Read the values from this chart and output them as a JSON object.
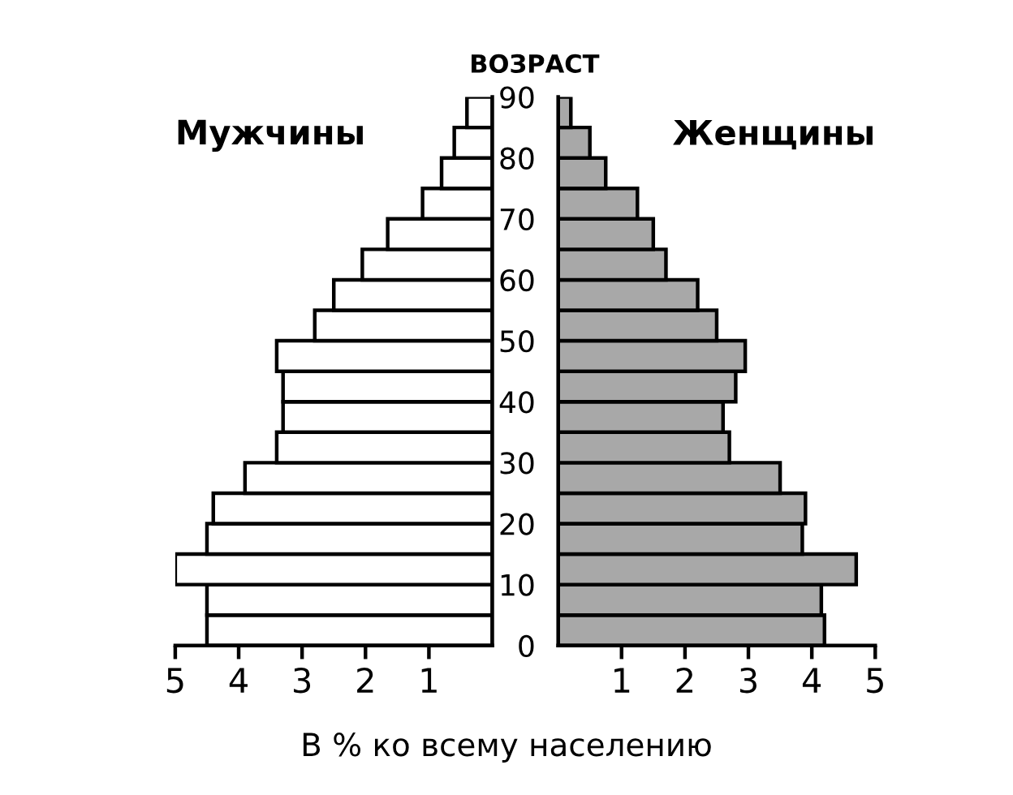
{
  "chart_data": [
    {
      "type": "histogram",
      "orientation": "horizontal",
      "title": "Мужчины",
      "xlabel": "В % ко всему населению",
      "bins": [
        0,
        5,
        10,
        15,
        20,
        25,
        30,
        35,
        40,
        45,
        50,
        55,
        60,
        65,
        70,
        75,
        80,
        85,
        90
      ],
      "values": [
        4.5,
        4.5,
        5.0,
        4.5,
        4.4,
        3.9,
        3.4,
        3.3,
        3.3,
        3.4,
        2.8,
        2.5,
        2.05,
        1.65,
        1.1,
        0.8,
        0.6,
        0.4
      ],
      "color": "#ffffff",
      "xlim": [
        5,
        0
      ],
      "xticks": [
        5,
        4,
        3,
        2,
        1
      ],
      "ylim": [
        0,
        90
      ],
      "yticks": [
        0,
        10,
        20,
        30,
        40,
        50,
        60,
        70,
        80,
        90
      ],
      "tick_labels": "x"
    },
    {
      "type": "histogram",
      "orientation": "horizontal",
      "title": "Женщины",
      "ylabel": "ВОЗРАСТ",
      "bins": [
        0,
        5,
        10,
        15,
        20,
        25,
        30,
        35,
        40,
        45,
        50,
        55,
        60,
        65,
        70,
        75,
        80,
        85,
        90
      ],
      "values": [
        4.2,
        4.15,
        4.7,
        3.85,
        3.9,
        3.5,
        2.7,
        2.6,
        2.8,
        2.95,
        2.5,
        2.2,
        1.7,
        1.5,
        1.25,
        0.75,
        0.5,
        0.2
      ],
      "color": "#a8a8a8",
      "xlim": [
        0,
        5
      ],
      "xticks": [
        1,
        2,
        3,
        4,
        5
      ],
      "ylim": [
        0,
        90
      ],
      "yticks": [
        0,
        10,
        20,
        30,
        40,
        50,
        60,
        70,
        80,
        90
      ]
    }
  ]
}
